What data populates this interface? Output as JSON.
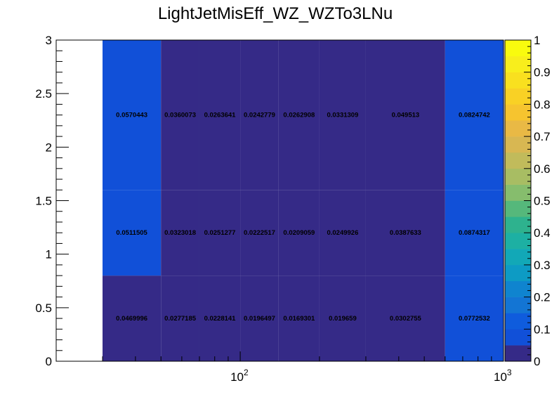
{
  "chart_data": {
    "type": "heatmap",
    "title": "LightJetMisEff_WZ_WZTo3LNu",
    "x_scale": "log",
    "xlim": [
      20,
      1000
    ],
    "ylim": [
      0,
      3
    ],
    "x_edges": [
      30,
      50,
      70,
      100,
      140,
      200,
      300,
      600,
      1000
    ],
    "y_edges": [
      0,
      0.8,
      1.6,
      3
    ],
    "x_tick_labels": [
      {
        "value": 100,
        "base": "10",
        "exp": "2"
      },
      {
        "value": 1000,
        "base": "10",
        "exp": "3"
      }
    ],
    "y_tick_labels": [
      "0",
      "0.5",
      "1",
      "1.5",
      "2",
      "2.5",
      "3"
    ],
    "y_ticks": [
      0,
      0.5,
      1,
      1.5,
      2,
      2.5,
      3
    ],
    "cells": [
      [
        "0.0469996",
        "0.0277185",
        "0.0228141",
        "0.0196497",
        "0.0169301",
        "0.019659",
        "0.0302755",
        "0.0772532"
      ],
      [
        "0.0511505",
        "0.0323018",
        "0.0251277",
        "0.0222517",
        "0.0209059",
        "0.0249926",
        "0.0387633",
        "0.0874317"
      ],
      [
        "0.0570443",
        "0.0360073",
        "0.0263641",
        "0.0242779",
        "0.0262908",
        "0.0331309",
        "0.049513",
        "0.0824742"
      ]
    ],
    "zlim": [
      0,
      1
    ],
    "z_tick_labels": [
      "0",
      "0.1",
      "0.2",
      "0.3",
      "0.4",
      "0.5",
      "0.6",
      "0.7",
      "0.8",
      "0.9",
      "1"
    ],
    "palette": [
      "#352a87",
      "#1150d8",
      "#0f5cdd",
      "#1375d4",
      "#0f84cf",
      "#0d9bc4",
      "#12a8b7",
      "#1db0a3",
      "#2eb28e",
      "#55b87b",
      "#86bd6d",
      "#a8bd63",
      "#c1bb5b",
      "#d8b752",
      "#e9b945",
      "#f6c42f",
      "#f9d125",
      "#f9e01f",
      "#f8ee1c",
      "#f9fb0e"
    ],
    "grid": false,
    "legend": "colorbar-right"
  }
}
